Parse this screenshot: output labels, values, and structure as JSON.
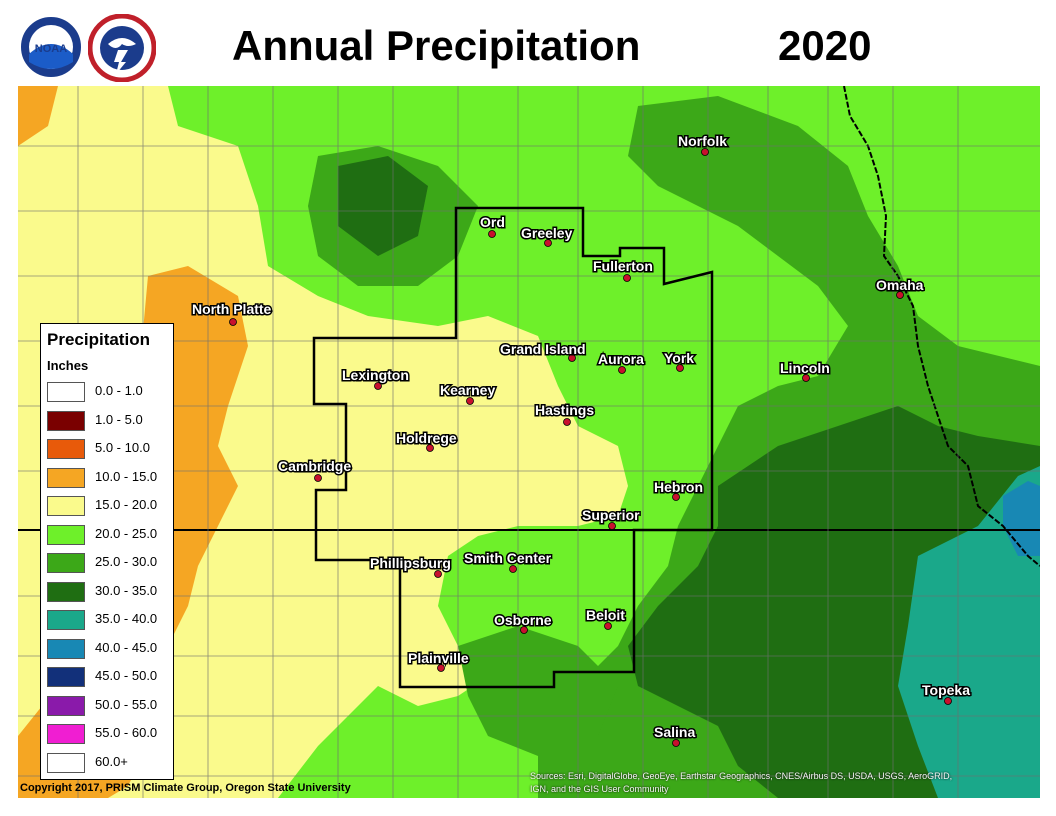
{
  "header": {
    "title": "Annual Precipitation",
    "year": "2020",
    "logo_noaa_text": "NOAA",
    "logo_nws_text": "NATIONAL WEATHER SERVICE"
  },
  "legend": {
    "title": "Precipitation",
    "units": "Inches",
    "items": [
      {
        "label": "0.0 - 1.0",
        "color": "#ffffff"
      },
      {
        "label": "1.0 - 5.0",
        "color": "#7a0000"
      },
      {
        "label": "5.0 - 10.0",
        "color": "#e85a0a"
      },
      {
        "label": "10.0 - 15.0",
        "color": "#f5a623"
      },
      {
        "label": "15.0 - 20.0",
        "color": "#fafa8c"
      },
      {
        "label": "20.0 - 25.0",
        "color": "#6ef02a"
      },
      {
        "label": "25.0 - 30.0",
        "color": "#3ca818"
      },
      {
        "label": "30.0 - 35.0",
        "color": "#1f6e12"
      },
      {
        "label": "35.0 - 40.0",
        "color": "#1aa88a"
      },
      {
        "label": "40.0 - 45.0",
        "color": "#1888b4"
      },
      {
        "label": "45.0 - 50.0",
        "color": "#12307a"
      },
      {
        "label": "50.0 - 55.0",
        "color": "#8a1aaa"
      },
      {
        "label": "55.0 - 60.0",
        "color": "#f01ed2"
      },
      {
        "label": "60.0+",
        "color": "#ffffff"
      }
    ]
  },
  "cities": [
    {
      "name": "Norfolk"
    },
    {
      "name": "Ord"
    },
    {
      "name": "Greeley"
    },
    {
      "name": "Fullerton"
    },
    {
      "name": "Omaha"
    },
    {
      "name": "North Platte"
    },
    {
      "name": "Grand Island"
    },
    {
      "name": "Aurora"
    },
    {
      "name": "York"
    },
    {
      "name": "Lincoln"
    },
    {
      "name": "Lexington"
    },
    {
      "name": "Kearney"
    },
    {
      "name": "Hastings"
    },
    {
      "name": "Holdrege"
    },
    {
      "name": "Cambridge"
    },
    {
      "name": "Hebron"
    },
    {
      "name": "Superior"
    },
    {
      "name": "Phillipsburg"
    },
    {
      "name": "Smith Center"
    },
    {
      "name": "Osborne"
    },
    {
      "name": "Beloit"
    },
    {
      "name": "Plainville"
    },
    {
      "name": "Topeka"
    },
    {
      "name": "Salina"
    }
  ],
  "footer": {
    "copyright": "Copyright 2017, PRISM Climate Group, Oregon State University",
    "attribution_line1": "Sources: Esri, DigitalGlobe, GeoEye, Earthstar Geographics, CNES/Airbus DS, USDA, USGS, AeroGRID,",
    "attribution_line2": "IGN, and the GIS User Community"
  }
}
